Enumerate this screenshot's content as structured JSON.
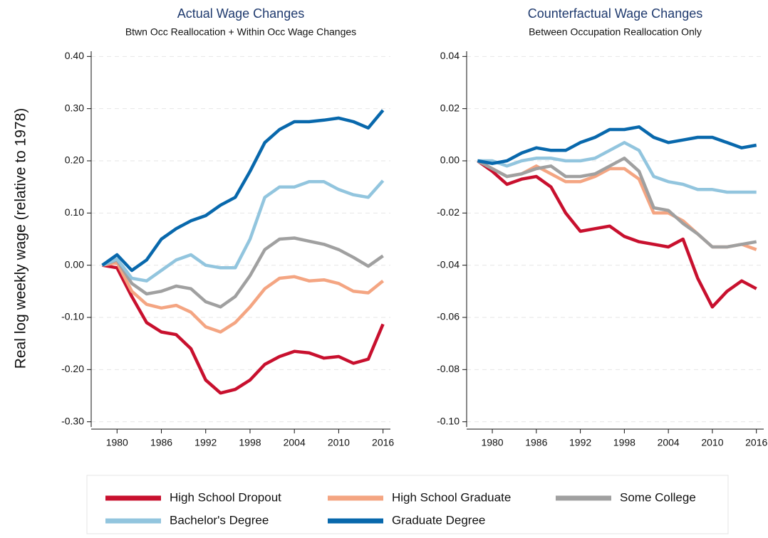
{
  "ylabel": "Real log weekly wage (relative to 1978)",
  "chart_data": [
    {
      "type": "line",
      "title": "Actual Wage Changes",
      "subtitle": "Btwn Occ Reallocation + Within Occ Wage Changes",
      "x": [
        1978,
        1980,
        1982,
        1984,
        1986,
        1988,
        1990,
        1992,
        1994,
        1996,
        1998,
        2000,
        2002,
        2004,
        2006,
        2008,
        2010,
        2012,
        2014,
        2016
      ],
      "xlim": [
        1976.5,
        2017
      ],
      "xticks": [
        1980,
        1986,
        1992,
        1998,
        2004,
        2010,
        2016
      ],
      "ylim": [
        -0.31,
        0.41
      ],
      "yticks": [
        {
          "value": 0.4,
          "label": "0.40"
        },
        {
          "value": 0.3,
          "label": "0.30"
        },
        {
          "value": 0.2,
          "label": "0.20"
        },
        {
          "value": 0.1,
          "label": "0.10"
        },
        {
          "value": 0,
          "label": "0.00"
        },
        {
          "value": -0.1,
          "label": "-0.10"
        },
        {
          "value": -0.2,
          "label": "-0.20"
        },
        {
          "value": -0.3,
          "label": "-0.30"
        }
      ],
      "grid": true,
      "series": [
        {
          "name": "High School Dropout",
          "color": "#c8102e",
          "values": [
            0,
            -0.005,
            -0.06,
            -0.11,
            -0.128,
            -0.133,
            -0.16,
            -0.22,
            -0.245,
            -0.238,
            -0.22,
            -0.19,
            -0.175,
            -0.165,
            -0.168,
            -0.178,
            -0.175,
            -0.188,
            -0.18,
            -0.113
          ]
        },
        {
          "name": "High School Graduate",
          "color": "#f4a582",
          "values": [
            0,
            0.005,
            -0.05,
            -0.075,
            -0.082,
            -0.077,
            -0.09,
            -0.118,
            -0.128,
            -0.11,
            -0.08,
            -0.045,
            -0.025,
            -0.022,
            -0.03,
            -0.028,
            -0.035,
            -0.05,
            -0.053,
            -0.03
          ]
        },
        {
          "name": "Some College",
          "color": "#a0a0a0",
          "values": [
            0,
            0.01,
            -0.035,
            -0.055,
            -0.05,
            -0.04,
            -0.045,
            -0.07,
            -0.08,
            -0.06,
            -0.02,
            0.03,
            0.05,
            0.052,
            0.046,
            0.04,
            0.03,
            0.015,
            -0.002,
            0.018
          ]
        },
        {
          "name": "Bachelor's Degree",
          "color": "#92c5de",
          "values": [
            0,
            0.012,
            -0.025,
            -0.03,
            -0.01,
            0.01,
            0.02,
            0,
            -0.005,
            -0.005,
            0.05,
            0.13,
            0.15,
            0.15,
            0.16,
            0.16,
            0.145,
            0.135,
            0.13,
            0.162
          ]
        },
        {
          "name": "Graduate Degree",
          "color": "#0868ac",
          "values": [
            0,
            0.02,
            -0.01,
            0.01,
            0.05,
            0.07,
            0.085,
            0.095,
            0.115,
            0.13,
            0.18,
            0.235,
            0.26,
            0.275,
            0.275,
            0.278,
            0.282,
            0.275,
            0.263,
            0.297
          ]
        }
      ]
    },
    {
      "type": "line",
      "title": "Counterfactual Wage Changes",
      "subtitle": "Between Occupation Reallocation Only",
      "x": [
        1978,
        1980,
        1982,
        1984,
        1986,
        1988,
        1990,
        1992,
        1994,
        1996,
        1998,
        2000,
        2002,
        2004,
        2006,
        2008,
        2010,
        2012,
        2014,
        2016
      ],
      "xlim": [
        1976.5,
        2017
      ],
      "xticks": [
        1980,
        1986,
        1992,
        1998,
        2004,
        2010,
        2016
      ],
      "ylim": [
        -0.102,
        0.042
      ],
      "yticks": [
        0.04,
        0.02,
        {
          "value": 0,
          "label": "0.00"
        },
        -0.02,
        -0.04,
        -0.06,
        -0.08,
        {
          "value": -0.1,
          "label": "-0.10"
        }
      ],
      "grid": true,
      "series": [
        {
          "color": "#c8102e",
          "values": [
            0,
            -0.004,
            -0.009,
            -0.007,
            -0.006,
            -0.01,
            -0.02,
            -0.027,
            -0.026,
            -0.025,
            -0.029,
            -0.031,
            -0.032,
            -0.033,
            -0.03,
            -0.045,
            -0.056,
            -0.05,
            -0.046,
            -0.049
          ]
        },
        {
          "color": "#f4a582",
          "values": [
            0,
            -0.003,
            -0.006,
            -0.005,
            -0.002,
            -0.005,
            -0.008,
            -0.008,
            -0.006,
            -0.003,
            -0.003,
            -0.007,
            -0.02,
            -0.02,
            -0.023,
            -0.028,
            -0.033,
            -0.033,
            -0.032,
            -0.034
          ]
        },
        {
          "color": "#a0a0a0",
          "values": [
            0,
            -0.003,
            -0.006,
            -0.005,
            -0.003,
            -0.002,
            -0.006,
            -0.006,
            -0.005,
            -0.002,
            0.001,
            -0.004,
            -0.018,
            -0.019,
            -0.024,
            -0.028,
            -0.033,
            -0.033,
            -0.032,
            -0.031
          ]
        },
        {
          "color": "#92c5de",
          "values": [
            0,
            0,
            -0.002,
            0,
            0.001,
            0.001,
            0,
            0,
            0.001,
            0.004,
            0.007,
            0.004,
            -0.006,
            -0.008,
            -0.009,
            -0.011,
            -0.011,
            -0.012,
            -0.012,
            -0.012
          ]
        },
        {
          "color": "#0868ac",
          "values": [
            0,
            -0.001,
            0,
            0.003,
            0.005,
            0.004,
            0.004,
            0.007,
            0.009,
            0.012,
            0.012,
            0.013,
            0.009,
            0.007,
            0.008,
            0.009,
            0.009,
            0.007,
            0.005,
            0.006
          ]
        }
      ]
    }
  ]
}
